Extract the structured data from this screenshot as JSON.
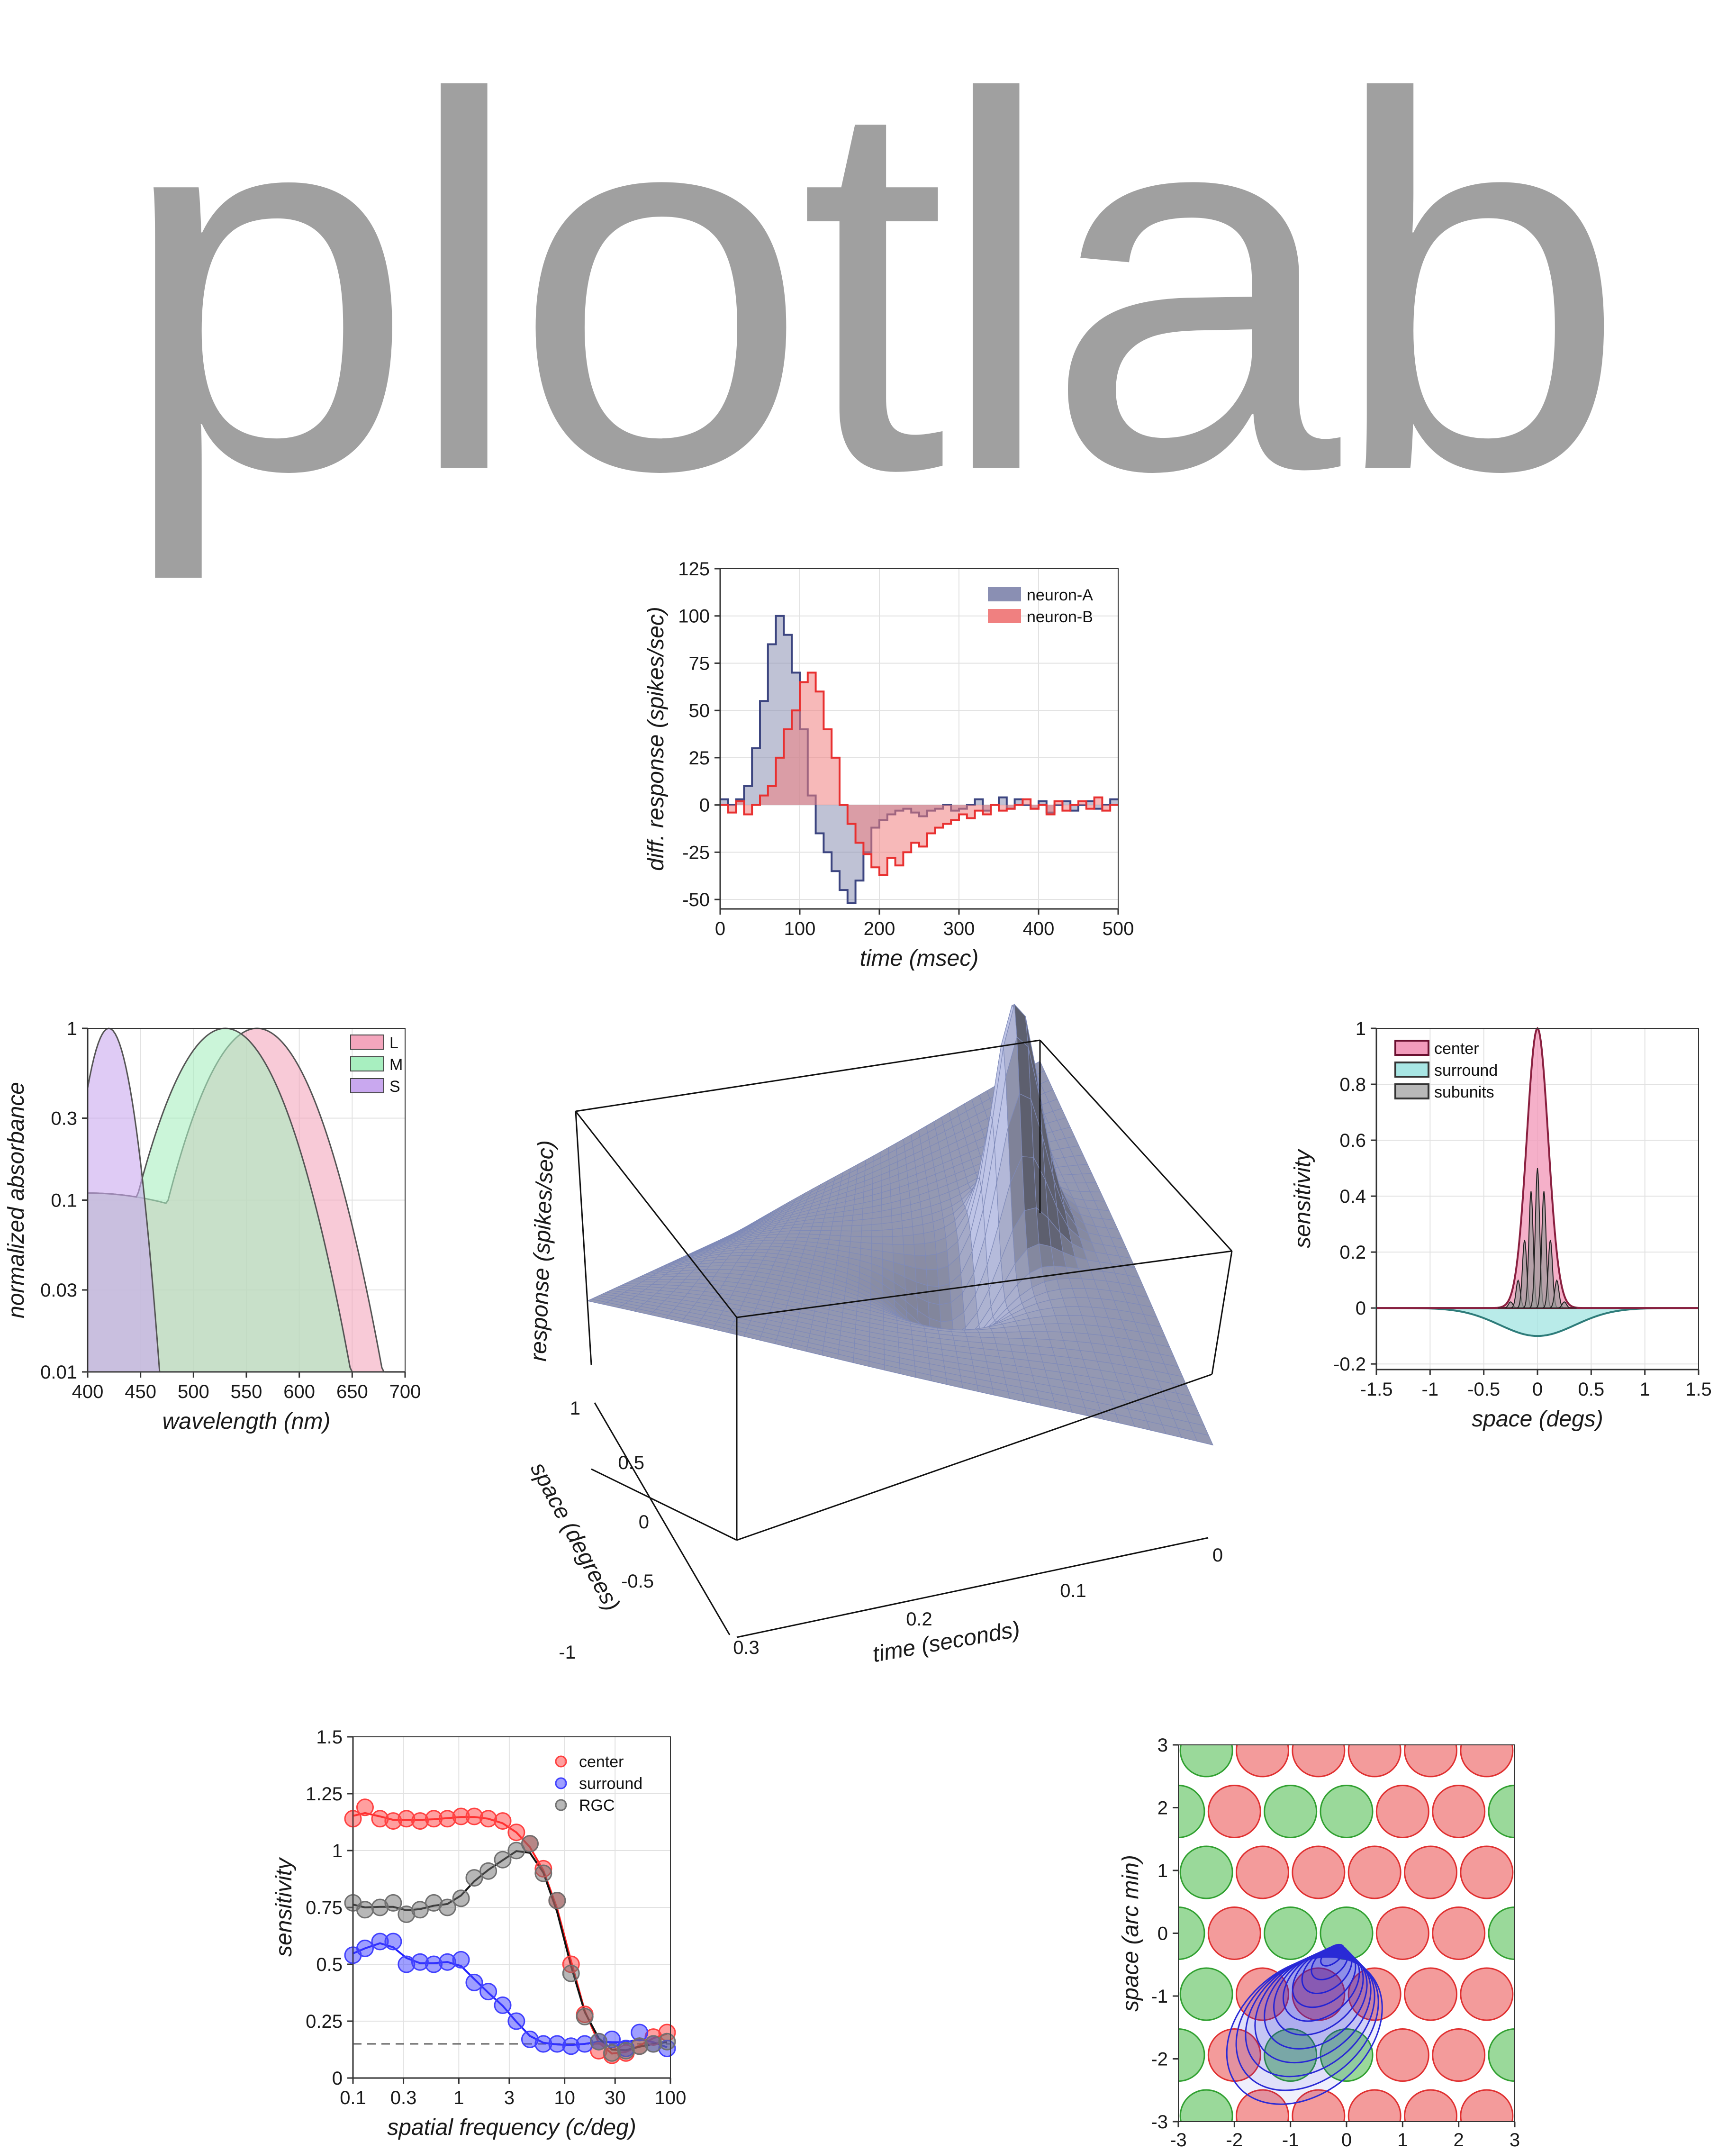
{
  "title": "plotlab",
  "chart_data": [
    {
      "id": "psth",
      "type": "area",
      "xlabel": "time (msec)",
      "ylabel": "diff. response (spikes/sec)",
      "xlim": [
        0,
        500
      ],
      "ylim": [
        -55,
        125
      ],
      "xticks": [
        0,
        100,
        200,
        300,
        400,
        500
      ],
      "yticks": [
        -50,
        -25,
        0,
        25,
        50,
        75,
        100,
        125
      ],
      "grid": true,
      "legend": "top-right",
      "bin_width": 10,
      "series": [
        {
          "name": "neuron-A",
          "color": "#8a8fb3",
          "x": [
            0,
            10,
            20,
            30,
            40,
            50,
            60,
            70,
            80,
            90,
            100,
            110,
            120,
            130,
            140,
            150,
            160,
            170,
            180,
            190,
            200,
            210,
            220,
            230,
            240,
            250,
            260,
            270,
            280,
            290,
            300,
            310,
            320,
            330,
            340,
            350,
            360,
            370,
            380,
            390,
            400,
            410,
            420,
            430,
            440,
            450,
            460,
            470,
            480,
            490
          ],
          "values": [
            3,
            0,
            3,
            10,
            30,
            55,
            85,
            100,
            90,
            70,
            40,
            5,
            -15,
            -25,
            -35,
            -45,
            -52,
            -40,
            -25,
            -12,
            -8,
            -5,
            -3,
            -2,
            -4,
            -6,
            -3,
            -2,
            0,
            -3,
            -2,
            0,
            3,
            -3,
            0,
            4,
            -2,
            3,
            0,
            -2,
            2,
            -4,
            0,
            2,
            -3,
            0,
            2,
            -2,
            0,
            3
          ]
        },
        {
          "name": "neuron-B",
          "color": "#f08080",
          "x": [
            0,
            10,
            20,
            30,
            40,
            50,
            60,
            70,
            80,
            90,
            100,
            110,
            120,
            130,
            140,
            150,
            160,
            170,
            180,
            190,
            200,
            210,
            220,
            230,
            240,
            250,
            260,
            270,
            280,
            290,
            300,
            310,
            320,
            330,
            340,
            350,
            360,
            370,
            380,
            390,
            400,
            410,
            420,
            430,
            440,
            450,
            460,
            470,
            480,
            490
          ],
          "values": [
            0,
            -4,
            2,
            -5,
            0,
            5,
            10,
            25,
            40,
            50,
            65,
            70,
            60,
            40,
            25,
            0,
            -10,
            -20,
            -26,
            -33,
            -37,
            -28,
            -32,
            -25,
            -20,
            -22,
            -15,
            -12,
            -10,
            -8,
            -5,
            -7,
            -3,
            -5,
            0,
            -3,
            -2,
            0,
            3,
            -2,
            0,
            -5,
            2,
            -3,
            0,
            2,
            -2,
            4,
            -3,
            0
          ]
        }
      ]
    },
    {
      "id": "absorbance",
      "type": "area",
      "xlabel": "wavelength (nm)",
      "ylabel": "normalized absorbance",
      "xlim": [
        400,
        700
      ],
      "ylim": [
        0.01,
        1
      ],
      "yscale": "log",
      "xticks": [
        400,
        450,
        500,
        550,
        600,
        650,
        700
      ],
      "yticks": [
        0.01,
        0.03,
        0.1,
        0.3,
        1
      ],
      "ytick_labels": [
        "0.01",
        "0.03",
        "0.1",
        "0.3",
        "1"
      ],
      "grid": true,
      "legend": "top-right",
      "series": [
        {
          "name": "L",
          "color": "#f4a6bd",
          "peak": 560,
          "lo": 400,
          "hi": 680
        },
        {
          "name": "M",
          "color": "#a8efc0",
          "peak": 530,
          "lo": 400,
          "hi": 650
        },
        {
          "name": "S",
          "color": "#c9a8ef",
          "peak": 420,
          "lo": 400,
          "hi": 512
        }
      ]
    },
    {
      "id": "surface",
      "type": "surface",
      "xlabel": "time (seconds)",
      "ylabel": "space (degrees)",
      "zlabel": "response (spikes/sec)",
      "xticks": [
        0.3,
        0.2,
        0.1,
        0
      ],
      "yticks": [
        -1,
        -0.5,
        0,
        0.5,
        1
      ],
      "color": "#7f8ab8"
    },
    {
      "id": "profile",
      "type": "area",
      "xlabel": "space (degs)",
      "ylabel": "sensitivity",
      "xlim": [
        -1.5,
        1.5
      ],
      "ylim": [
        -0.22,
        1
      ],
      "xticks": [
        -1.5,
        -1,
        -0.5,
        0,
        0.5,
        1,
        1.5
      ],
      "yticks": [
        -0.2,
        0,
        0.2,
        0.4,
        0.6,
        0.8,
        1
      ],
      "grid": true,
      "legend": "top-left",
      "series": [
        {
          "name": "center",
          "color": "#f29cbc",
          "amp": 1.0,
          "sigma": 0.1
        },
        {
          "name": "surround",
          "color": "#a8e6e4",
          "amp": -0.1,
          "sigma": 0.35
        },
        {
          "name": "subunits",
          "color": "#b8b8b8",
          "amp": 0.5,
          "sigma": 0.1
        }
      ]
    },
    {
      "id": "csf",
      "type": "scatter",
      "xlabel": "spatial frequency (c/deg)",
      "ylabel": "sensitivity",
      "xscale": "log",
      "xlim": [
        0.1,
        100
      ],
      "ylim": [
        0,
        1.5
      ],
      "xticks": [
        0.1,
        0.3,
        1,
        3,
        10,
        30,
        100
      ],
      "xtick_labels": [
        "0.1",
        "0.3",
        "1",
        "3",
        "10",
        "30",
        "100"
      ],
      "yticks": [
        0,
        0.25,
        0.5,
        0.75,
        1,
        1.25,
        1.5
      ],
      "grid": true,
      "legend": "top-right",
      "x": [
        0.1,
        0.13,
        0.18,
        0.24,
        0.32,
        0.43,
        0.58,
        0.78,
        1.05,
        1.4,
        1.9,
        2.6,
        3.5,
        4.7,
        6.3,
        8.5,
        11.5,
        15.5,
        21,
        28,
        38,
        51,
        69,
        93
      ],
      "series": [
        {
          "name": "center",
          "color": "#ff4040",
          "values": [
            1.14,
            1.19,
            1.14,
            1.13,
            1.14,
            1.13,
            1.14,
            1.14,
            1.15,
            1.15,
            1.14,
            1.13,
            1.08,
            1.03,
            0.92,
            0.78,
            0.5,
            0.28,
            0.12,
            0.1,
            0.11,
            0.14,
            0.18,
            0.2
          ]
        },
        {
          "name": "surround",
          "color": "#4040ff",
          "values": [
            0.54,
            0.57,
            0.6,
            0.6,
            0.5,
            0.51,
            0.5,
            0.51,
            0.52,
            0.42,
            0.38,
            0.32,
            0.25,
            0.17,
            0.15,
            0.15,
            0.14,
            0.15,
            0.16,
            0.17,
            0.13,
            0.2,
            0.15,
            0.13
          ]
        },
        {
          "name": "RGC",
          "color": "#707070",
          "values": [
            0.77,
            0.74,
            0.75,
            0.77,
            0.72,
            0.74,
            0.77,
            0.75,
            0.79,
            0.88,
            0.91,
            0.96,
            1.0,
            1.03,
            0.9,
            0.78,
            0.46,
            0.27,
            0.16,
            0.11,
            0.12,
            0.14,
            0.15,
            0.16
          ]
        }
      ],
      "baseline": 0.15
    },
    {
      "id": "mosaic",
      "type": "scatter",
      "xlabel": "space (arc min)",
      "ylabel": "space (arc min)",
      "xlim": [
        -3,
        3
      ],
      "ylim": [
        -3,
        3
      ],
      "xticks": [
        -3,
        -2,
        -1,
        0,
        1,
        2,
        3
      ],
      "yticks": [
        -3,
        -2,
        -1,
        0,
        1,
        2,
        3
      ],
      "cone_colors": {
        "L": "#f39b9b",
        "M": "#9ad99a"
      },
      "contour_color": "#2a2ad6"
    }
  ]
}
